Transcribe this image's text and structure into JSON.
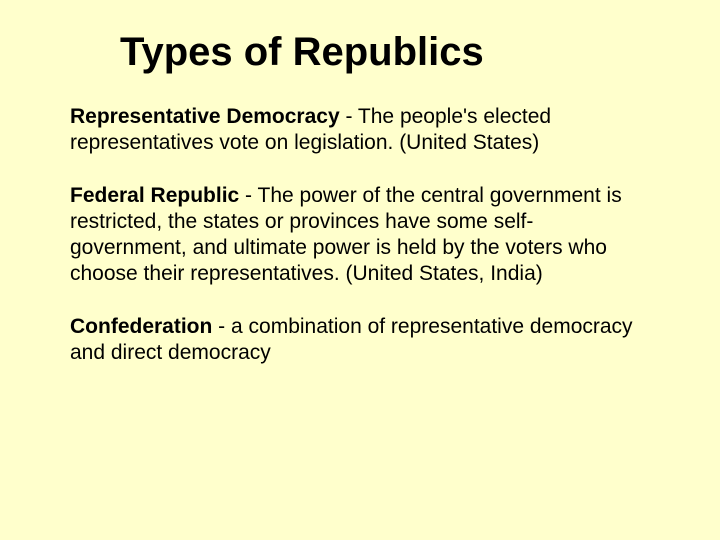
{
  "background_color": "#ffffcc",
  "text_color": "#000000",
  "title": "Types of Republics",
  "title_fontsize": 40,
  "body_fontsize": 21,
  "entries": [
    {
      "term": "Representative Democracy",
      "definition": " - The people's elected representatives vote on legislation.  (United States)"
    },
    {
      "term": "Federal Republic",
      "definition": " - The power of the central government is restricted, the states or provinces have some self-government, and ultimate power is held by the voters who choose their representatives. (United States, India)"
    },
    {
      "term": "Confederation",
      "definition": " - a combination of representative democracy and direct democracy"
    }
  ]
}
